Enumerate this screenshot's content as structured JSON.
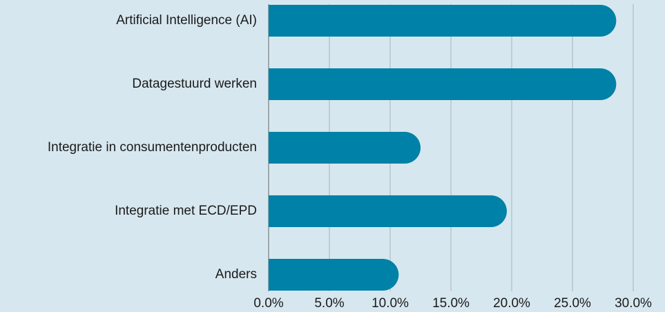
{
  "chart_data": {
    "type": "bar",
    "orientation": "horizontal",
    "categories": [
      "Artificial Intelligence (AI)",
      "Datagestuurd werken",
      "Integratie in consumentenproducten",
      "Integratie met ECD/EPD",
      "Anders"
    ],
    "values": [
      28.6,
      28.6,
      12.5,
      19.6,
      10.7
    ],
    "color": "#0081a7",
    "xlim": [
      0,
      30
    ],
    "xticks": [
      {
        "value": 0,
        "label": "0.0%"
      },
      {
        "value": 5,
        "label": "5.0%"
      },
      {
        "value": 10,
        "label": "10.0%"
      },
      {
        "value": 15,
        "label": "15.0%"
      },
      {
        "value": 20,
        "label": "20.0%"
      },
      {
        "value": 25,
        "label": "25.0%"
      },
      {
        "value": 30,
        "label": "30.0%"
      }
    ],
    "grid": true
  }
}
